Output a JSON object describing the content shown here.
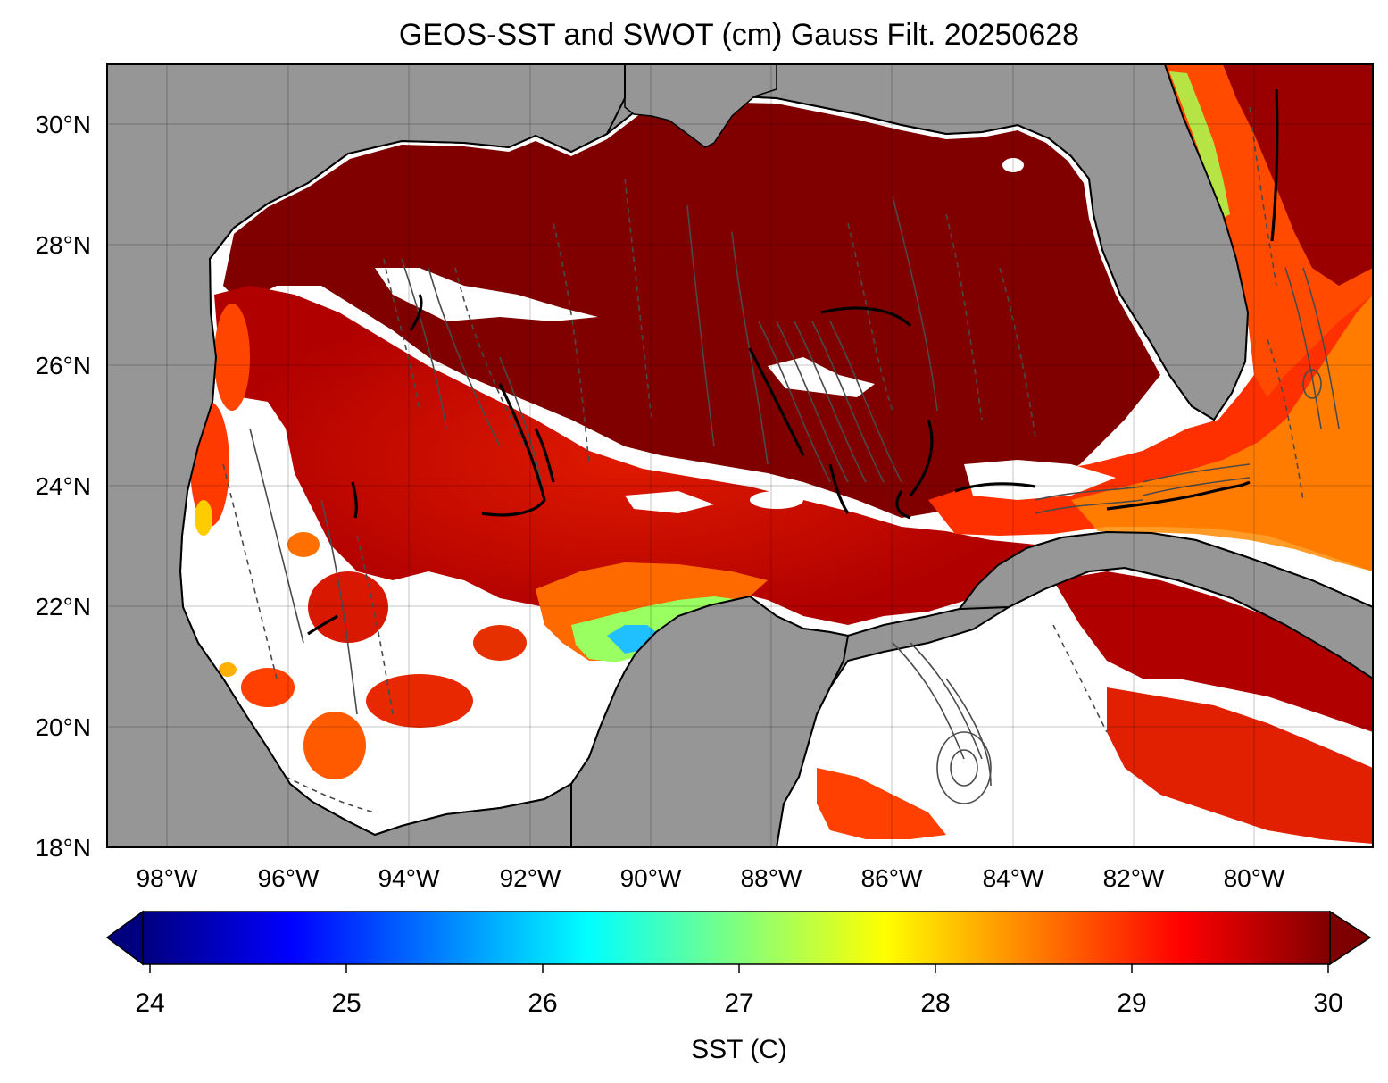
{
  "map": {
    "title": "GEOS-SST  and SWOT (cm) Gauss Filt. 20250628",
    "lat_labels": [
      "30°N",
      "28°N",
      "26°N",
      "24°N",
      "22°N",
      "20°N",
      "18°N"
    ],
    "lon_labels": [
      "98°W",
      "96°W",
      "94°W",
      "92°W",
      "90°W",
      "88°W",
      "86°W",
      "84°W",
      "82°W",
      "80°W"
    ],
    "lon_range": [
      -99,
      -78
    ],
    "lat_range": [
      18,
      31
    ],
    "land_color": "#969696",
    "nodata_color": "#ffffff",
    "contour_color": "#4a4a4a",
    "gridlines": true
  },
  "colorbar": {
    "label": "SST (C)",
    "ticks": [
      "24",
      "25",
      "26",
      "27",
      "28",
      "29",
      "30"
    ],
    "range": [
      24,
      30
    ],
    "colormap": "jet",
    "extend": "both",
    "colors": [
      "#00007f",
      "#0000ff",
      "#007fff",
      "#00ffff",
      "#7fff7f",
      "#ffff00",
      "#ff7f00",
      "#ff0000",
      "#7f0000"
    ]
  }
}
